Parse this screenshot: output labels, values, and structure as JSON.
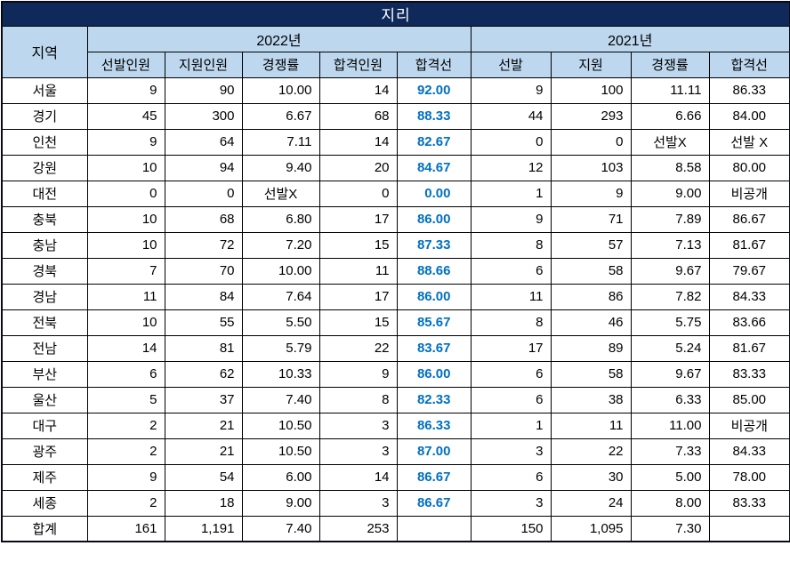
{
  "title": "지리",
  "colors": {
    "title_bar_bg": "#10295B",
    "title_text": "#FFFFFF",
    "header_bg": "#BDD7EE",
    "cutoff_accent": "#0070C0",
    "grid_border": "#000000"
  },
  "table": {
    "region_header": "지역",
    "groups": [
      {
        "label": "2022년",
        "columns": [
          "선발인원",
          "지원인원",
          "경쟁률",
          "합격인원",
          "합격선"
        ]
      },
      {
        "label": "2021년",
        "columns": [
          "선발",
          "지원",
          "경쟁률",
          "합격선"
        ]
      }
    ],
    "rows": [
      {
        "region": "서울",
        "values": [
          "9",
          "90",
          "10.00",
          "14",
          "92.00",
          "9",
          "100",
          "11.11",
          "86.33"
        ]
      },
      {
        "region": "경기",
        "values": [
          "45",
          "300",
          "6.67",
          "68",
          "88.33",
          "44",
          "293",
          "6.66",
          "84.00"
        ]
      },
      {
        "region": "인천",
        "values": [
          "9",
          "64",
          "7.11",
          "14",
          "82.67",
          "0",
          "0",
          "선발X",
          "선발 X"
        ]
      },
      {
        "region": "강원",
        "values": [
          "10",
          "94",
          "9.40",
          "20",
          "84.67",
          "12",
          "103",
          "8.58",
          "80.00"
        ]
      },
      {
        "region": "대전",
        "values": [
          "0",
          "0",
          "선발X",
          "0",
          "0.00",
          "1",
          "9",
          "9.00",
          "비공개"
        ]
      },
      {
        "region": "충북",
        "values": [
          "10",
          "68",
          "6.80",
          "17",
          "86.00",
          "9",
          "71",
          "7.89",
          "86.67"
        ]
      },
      {
        "region": "충남",
        "values": [
          "10",
          "72",
          "7.20",
          "15",
          "87.33",
          "8",
          "57",
          "7.13",
          "81.67"
        ]
      },
      {
        "region": "경북",
        "values": [
          "7",
          "70",
          "10.00",
          "11",
          "88.66",
          "6",
          "58",
          "9.67",
          "79.67"
        ]
      },
      {
        "region": "경남",
        "values": [
          "11",
          "84",
          "7.64",
          "17",
          "86.00",
          "11",
          "86",
          "7.82",
          "84.33"
        ]
      },
      {
        "region": "전북",
        "values": [
          "10",
          "55",
          "5.50",
          "15",
          "85.67",
          "8",
          "46",
          "5.75",
          "83.66"
        ]
      },
      {
        "region": "전남",
        "values": [
          "14",
          "81",
          "5.79",
          "22",
          "83.67",
          "17",
          "89",
          "5.24",
          "81.67"
        ]
      },
      {
        "region": "부산",
        "values": [
          "6",
          "62",
          "10.33",
          "9",
          "86.00",
          "6",
          "58",
          "9.67",
          "83.33"
        ]
      },
      {
        "region": "울산",
        "values": [
          "5",
          "37",
          "7.40",
          "8",
          "82.33",
          "6",
          "38",
          "6.33",
          "85.00"
        ]
      },
      {
        "region": "대구",
        "values": [
          "2",
          "21",
          "10.50",
          "3",
          "86.33",
          "1",
          "11",
          "11.00",
          "비공개"
        ]
      },
      {
        "region": "광주",
        "values": [
          "2",
          "21",
          "10.50",
          "3",
          "87.00",
          "3",
          "22",
          "7.33",
          "84.33"
        ]
      },
      {
        "region": "제주",
        "values": [
          "9",
          "54",
          "6.00",
          "14",
          "86.67",
          "6",
          "30",
          "5.00",
          "78.00"
        ]
      },
      {
        "region": "세종",
        "values": [
          "2",
          "18",
          "9.00",
          "3",
          "86.67",
          "3",
          "24",
          "8.00",
          "83.33"
        ]
      },
      {
        "region": "합계",
        "values": [
          "161",
          "1,191",
          "7.40",
          "253",
          "",
          "150",
          "1,095",
          "7.30",
          ""
        ]
      }
    ]
  }
}
